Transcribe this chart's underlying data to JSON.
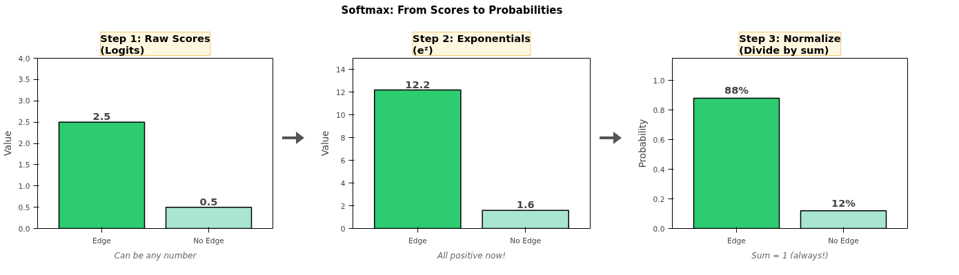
{
  "chart_data": [
    {
      "type": "bar",
      "title": "Step 1: Raw Scores\n(Logits)",
      "xlabel": "Can be any number",
      "ylabel": "Value",
      "annotations": [
        "Softmax: From Scores to Probabilities"
      ],
      "categories": [
        "Edge",
        "No Edge"
      ],
      "values": [
        2.5,
        0.5
      ],
      "colors": [
        "#2ecc71",
        "#a8e6cf"
      ],
      "data_labels": true,
      "ylim": [
        0,
        4
      ],
      "yticks": [
        {
          "value": 0,
          "label": "0.0"
        },
        {
          "value": 0.5,
          "label": "0.5"
        },
        {
          "value": 1,
          "label": "1.0"
        },
        {
          "value": 1.5,
          "label": "1.5"
        },
        {
          "value": 2,
          "label": "2.0"
        },
        {
          "value": 2.5,
          "label": "2.5"
        },
        {
          "value": 3,
          "label": "3.0"
        },
        {
          "value": 3.5,
          "label": "3.5"
        },
        {
          "value": 4,
          "label": "4.0"
        }
      ],
      "grid": false
    },
    {
      "type": "bar",
      "title": "Step 2: Exponentials\n(eᶻ)",
      "xlabel": "All positive now!",
      "ylabel": "Value",
      "categories": [
        "Edge",
        "No Edge"
      ],
      "values": [
        12.2,
        1.6
      ],
      "colors": [
        "#2ecc71",
        "#a8e6cf"
      ],
      "data_labels": true,
      "ylim": [
        0,
        15
      ],
      "yticks": [
        0,
        2,
        4,
        6,
        8,
        10,
        12,
        14
      ],
      "grid": false
    },
    {
      "type": "bar",
      "title": "Step 3: Normalize\n(Divide by sum)",
      "xlabel": "Sum = 1 (always!)",
      "ylabel": "Probability",
      "categories": [
        "Edge",
        "No Edge"
      ],
      "values": [
        0.88,
        0.12
      ],
      "value_labels": [
        "88%",
        "12%"
      ],
      "colors": [
        "#2ecc71",
        "#a8e6cf"
      ],
      "ylim": [
        0,
        1.15
      ],
      "yticks": [
        {
          "value": 0,
          "label": "0.0"
        },
        {
          "value": 0.2,
          "label": "0.2"
        },
        {
          "value": 0.4,
          "label": "0.4"
        },
        {
          "value": 0.6,
          "label": "0.6"
        },
        {
          "value": 0.8,
          "label": "0.8"
        },
        {
          "value": 1,
          "label": "1.0"
        }
      ],
      "grid": false
    }
  ]
}
